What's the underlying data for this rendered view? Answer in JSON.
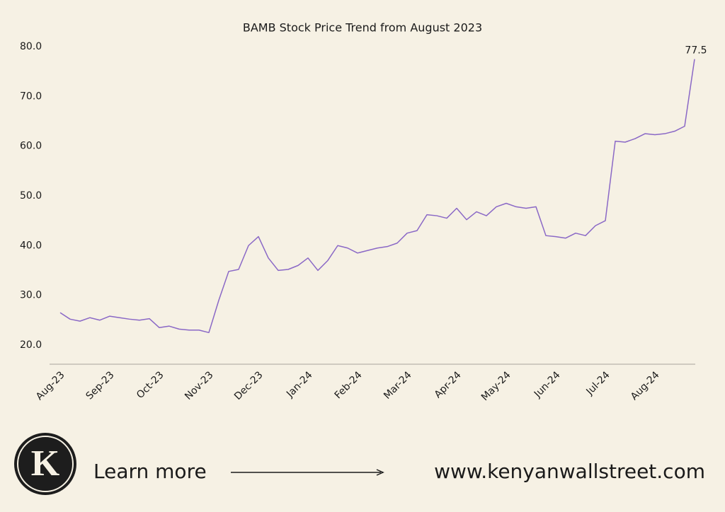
{
  "chart_data": {
    "type": "line",
    "title": "BAMB Stock Price Trend from August 2023",
    "categories": [
      "Aug-23",
      null,
      null,
      null,
      null,
      "Sep-23",
      null,
      null,
      null,
      null,
      "Oct-23",
      null,
      null,
      null,
      null,
      "Nov-23",
      null,
      null,
      null,
      null,
      "Dec-23",
      null,
      null,
      null,
      null,
      "Jan-24",
      null,
      null,
      null,
      null,
      "Feb-24",
      null,
      null,
      null,
      null,
      "Mar-24",
      null,
      null,
      null,
      null,
      "Apr-24",
      null,
      null,
      null,
      null,
      "May-24",
      null,
      null,
      null,
      null,
      "Jun-24",
      null,
      null,
      null,
      null,
      "Jul-24",
      null,
      null,
      null,
      null,
      "Aug-24",
      null,
      null,
      null,
      null
    ],
    "values": [
      26.5,
      25.2,
      24.8,
      25.5,
      25.0,
      25.8,
      25.5,
      25.2,
      25.0,
      25.3,
      23.5,
      23.8,
      23.2,
      23.0,
      23.0,
      22.5,
      29.0,
      34.8,
      35.2,
      40.0,
      41.8,
      37.5,
      35.0,
      35.2,
      36.0,
      37.5,
      35.0,
      37.0,
      40.0,
      39.5,
      38.5,
      39.0,
      39.5,
      39.8,
      40.5,
      42.5,
      43.0,
      46.2,
      46.0,
      45.5,
      47.5,
      45.2,
      46.8,
      46.0,
      47.8,
      48.5,
      47.8,
      47.5,
      47.8,
      42.0,
      41.8,
      41.5,
      42.5,
      42.0,
      44.0,
      45.0,
      61.0,
      60.8,
      61.5,
      62.5,
      62.3,
      62.5,
      63.0,
      64.0,
      77.5
    ],
    "color": "#8a68c6",
    "ylim": [
      16,
      80
    ],
    "yticks": [
      {
        "value": 20,
        "label": "20.0"
      },
      {
        "value": 30,
        "label": "30.0"
      },
      {
        "value": 40,
        "label": "40.0"
      },
      {
        "value": 50,
        "label": "50.0"
      },
      {
        "value": 60,
        "label": "60.0"
      },
      {
        "value": 70,
        "label": "70.0"
      },
      {
        "value": 80,
        "label": "80.0"
      }
    ],
    "grid": false
  },
  "footer": {
    "logo": "K",
    "cta": "Learn more",
    "url": "www.kenyanwallstreet.com"
  }
}
